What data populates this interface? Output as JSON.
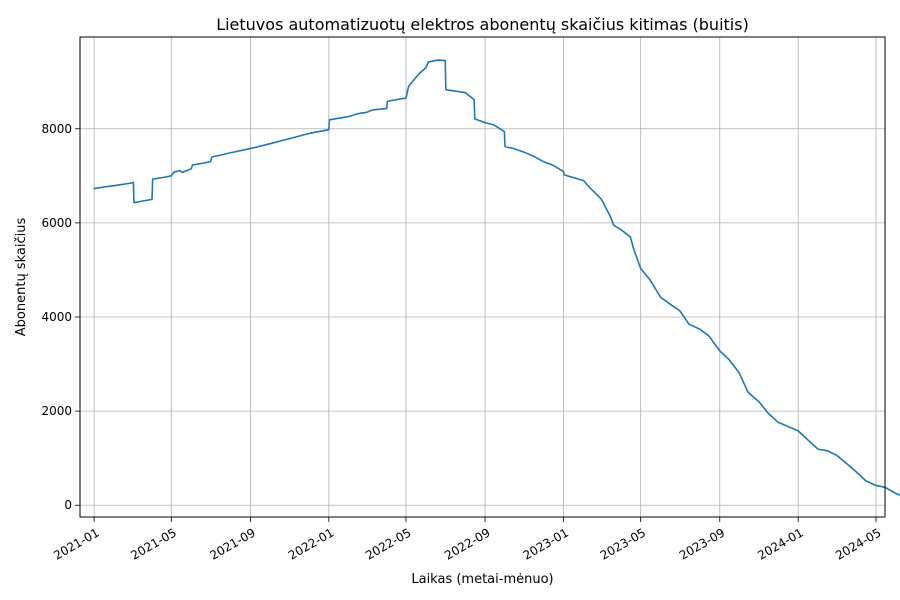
{
  "chart_data": {
    "type": "line",
    "title": "Lietuvos automatizuotų elektros abonentų skaičius kitimas (buitis)",
    "xlabel": "Laikas (metai-mėnuo)",
    "ylabel": "Abonentų skaičius",
    "x_tick_labels": [
      "2021-01",
      "2021-05",
      "2021-09",
      "2022-01",
      "2022-05",
      "2022-09",
      "2023-01",
      "2023-05",
      "2023-09",
      "2024-01",
      "2024-05"
    ],
    "y_tick_labels": [
      "0",
      "2000",
      "4000",
      "6000",
      "8000"
    ],
    "x_range": [
      "2020-12-10",
      "2024-05-15"
    ],
    "ylim": [
      -250,
      9950
    ],
    "grid": true,
    "series": [
      {
        "color": "#1f77b4",
        "points": [
          [
            "2021-01-01",
            6730
          ],
          [
            "2021-01-15",
            6760
          ],
          [
            "2021-02-01",
            6790
          ],
          [
            "2021-02-15",
            6820
          ],
          [
            "2021-03-01",
            6850
          ],
          [
            "2021-03-03",
            6860
          ],
          [
            "2021-03-04",
            6430
          ],
          [
            "2021-03-20",
            6470
          ],
          [
            "2021-04-01",
            6500
          ],
          [
            "2021-04-02",
            6930
          ],
          [
            "2021-04-20",
            6970
          ],
          [
            "2021-05-01",
            7000
          ],
          [
            "2021-05-05",
            7080
          ],
          [
            "2021-05-15",
            7110
          ],
          [
            "2021-05-18",
            7070
          ],
          [
            "2021-06-01",
            7150
          ],
          [
            "2021-06-03",
            7230
          ],
          [
            "2021-06-20",
            7270
          ],
          [
            "2021-07-01",
            7300
          ],
          [
            "2021-07-03",
            7400
          ],
          [
            "2021-07-20",
            7450
          ],
          [
            "2021-08-01",
            7490
          ],
          [
            "2021-09-01",
            7580
          ],
          [
            "2021-10-01",
            7680
          ],
          [
            "2021-11-01",
            7790
          ],
          [
            "2021-12-01",
            7900
          ],
          [
            "2022-01-01",
            7980
          ],
          [
            "2022-01-02",
            8190
          ],
          [
            "2022-02-01",
            8260
          ],
          [
            "2022-02-15",
            8320
          ],
          [
            "2022-03-01",
            8350
          ],
          [
            "2022-03-10",
            8400
          ],
          [
            "2022-04-01",
            8430
          ],
          [
            "2022-04-02",
            8580
          ],
          [
            "2022-04-20",
            8630
          ],
          [
            "2022-05-01",
            8650
          ],
          [
            "2022-05-05",
            8900
          ],
          [
            "2022-05-20",
            9150
          ],
          [
            "2022-06-01",
            9300
          ],
          [
            "2022-06-05",
            9420
          ],
          [
            "2022-06-20",
            9460
          ],
          [
            "2022-07-01",
            9450
          ],
          [
            "2022-07-02",
            8830
          ],
          [
            "2022-08-01",
            8770
          ],
          [
            "2022-08-15",
            8620
          ],
          [
            "2022-08-16",
            8210
          ],
          [
            "2022-09-01",
            8130
          ],
          [
            "2022-09-15",
            8080
          ],
          [
            "2022-10-01",
            7940
          ],
          [
            "2022-10-02",
            7620
          ],
          [
            "2022-10-15",
            7580
          ],
          [
            "2022-11-01",
            7500
          ],
          [
            "2022-11-15",
            7420
          ],
          [
            "2022-12-01",
            7300
          ],
          [
            "2022-12-15",
            7230
          ],
          [
            "2023-01-01",
            7090
          ],
          [
            "2023-01-02",
            7020
          ],
          [
            "2023-02-01",
            6900
          ],
          [
            "2023-02-10",
            6760
          ],
          [
            "2023-03-01",
            6500
          ],
          [
            "2023-03-15",
            6130
          ],
          [
            "2023-03-20",
            5950
          ],
          [
            "2023-04-01",
            5850
          ],
          [
            "2023-04-15",
            5700
          ],
          [
            "2023-04-20",
            5450
          ],
          [
            "2023-05-01",
            5030
          ],
          [
            "2023-05-15",
            4800
          ],
          [
            "2023-06-01",
            4420
          ],
          [
            "2023-06-15",
            4280
          ],
          [
            "2023-07-01",
            4130
          ],
          [
            "2023-07-15",
            3850
          ],
          [
            "2023-08-01",
            3740
          ],
          [
            "2023-08-15",
            3600
          ],
          [
            "2023-09-01",
            3280
          ],
          [
            "2023-09-15",
            3100
          ],
          [
            "2023-10-01",
            2820
          ],
          [
            "2023-10-15",
            2400
          ],
          [
            "2023-11-01",
            2200
          ],
          [
            "2023-11-15",
            1960
          ],
          [
            "2023-12-01",
            1760
          ],
          [
            "2023-12-15",
            1680
          ],
          [
            "2024-01-01",
            1580
          ],
          [
            "2024-01-15",
            1400
          ],
          [
            "2024-02-01",
            1190
          ],
          [
            "2024-02-15",
            1160
          ],
          [
            "2024-03-01",
            1060
          ],
          [
            "2024-03-15",
            900
          ],
          [
            "2024-04-01",
            700
          ],
          [
            "2024-04-15",
            520
          ],
          [
            "2024-05-01",
            420
          ],
          [
            "2024-05-15",
            380
          ],
          [
            "2024-06-01",
            250
          ],
          [
            "2024-06-08",
            210
          ]
        ]
      }
    ]
  }
}
